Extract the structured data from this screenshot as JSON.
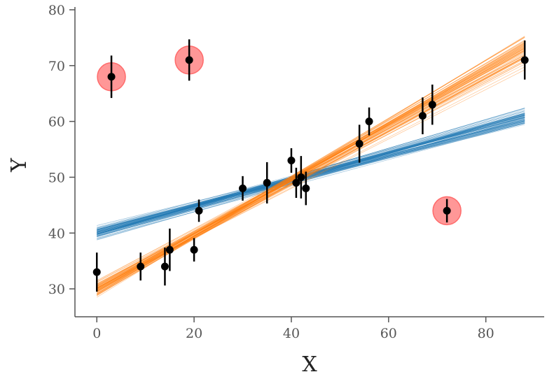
{
  "chart_data": {
    "type": "scatter",
    "title": "",
    "xlabel": "X",
    "ylabel": "Y",
    "xlim": [
      -4.5,
      92
    ],
    "ylim": [
      25,
      80.5
    ],
    "xticks": [
      0,
      20,
      40,
      60,
      80
    ],
    "yticks": [
      30,
      40,
      50,
      60,
      70,
      80
    ],
    "grid": false,
    "colors": {
      "points": "#000000",
      "outliers": "#ff6b6b",
      "fit_series_1": "#1f77b4",
      "fit_series_2": "#ff7f0e",
      "axes": "#555555"
    },
    "points": [
      {
        "x": 0,
        "y": 33,
        "yerr": 3.5
      },
      {
        "x": 3,
        "y": 68,
        "yerr": 3.8
      },
      {
        "x": 9,
        "y": 34,
        "yerr": 2.5
      },
      {
        "x": 14,
        "y": 34,
        "yerr": 3.4
      },
      {
        "x": 15,
        "y": 37,
        "yerr": 3.8
      },
      {
        "x": 19,
        "y": 71,
        "yerr": 3.7
      },
      {
        "x": 20,
        "y": 37,
        "yerr": 2.1
      },
      {
        "x": 21,
        "y": 44,
        "yerr": 2.0
      },
      {
        "x": 30,
        "y": 48,
        "yerr": 2.2
      },
      {
        "x": 35,
        "y": 49,
        "yerr": 3.7
      },
      {
        "x": 40,
        "y": 53,
        "yerr": 2.2
      },
      {
        "x": 41,
        "y": 49,
        "yerr": 2.7
      },
      {
        "x": 42,
        "y": 50,
        "yerr": 3.8
      },
      {
        "x": 43,
        "y": 48,
        "yerr": 3.0
      },
      {
        "x": 54,
        "y": 56,
        "yerr": 3.4
      },
      {
        "x": 56,
        "y": 60,
        "yerr": 2.5
      },
      {
        "x": 67,
        "y": 61,
        "yerr": 3.3
      },
      {
        "x": 69,
        "y": 63,
        "yerr": 3.6
      },
      {
        "x": 72,
        "y": 44,
        "yerr": 2.1
      },
      {
        "x": 88,
        "y": 71,
        "yerr": 3.5
      }
    ],
    "outliers": [
      {
        "x": 3,
        "y": 68
      },
      {
        "x": 19,
        "y": 71
      },
      {
        "x": 72,
        "y": 44
      }
    ],
    "series": [
      {
        "type": "line-ensemble",
        "color": "#1f77b4",
        "slope_mean": 0.238,
        "slope_sd": 0.012,
        "intercept_mean": 39.95,
        "intercept_sd": 0.75,
        "samples": 60,
        "x_range": [
          0,
          88
        ]
      },
      {
        "type": "line-ensemble",
        "color": "#ff7f0e",
        "slope_mean": 0.485,
        "slope_sd": 0.022,
        "intercept_mean": 29.9,
        "intercept_sd": 0.9,
        "samples": 60,
        "x_range": [
          0,
          88
        ]
      }
    ]
  }
}
